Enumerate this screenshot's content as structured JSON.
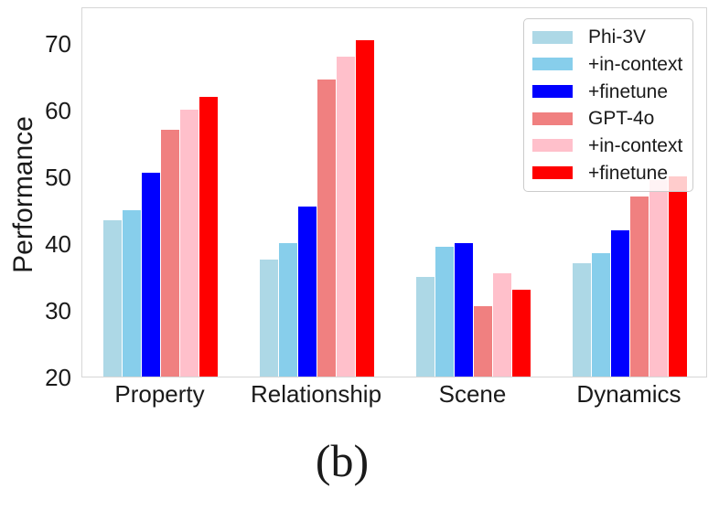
{
  "chart_data": {
    "type": "bar",
    "title": "",
    "xlabel": "",
    "ylabel": "Performance",
    "caption": "(b)",
    "categories": [
      "Property",
      "Relationship",
      "Scene",
      "Dynamics"
    ],
    "series": [
      {
        "name": "Phi-3V",
        "color": "#ADD8E6",
        "values": [
          43.5,
          37.5,
          35.0,
          37.0
        ]
      },
      {
        "name": "+in-context",
        "color": "#87CEEB",
        "values": [
          45.0,
          40.0,
          39.5,
          38.5
        ]
      },
      {
        "name": "+finetune",
        "color": "#0000FF",
        "values": [
          50.5,
          45.5,
          40.0,
          42.0
        ]
      },
      {
        "name": "GPT-4o",
        "color": "#F08080",
        "values": [
          57.0,
          64.5,
          30.5,
          47.0
        ]
      },
      {
        "name": "+in-context",
        "color": "#FFC0CB",
        "values": [
          60.0,
          68.0,
          35.5,
          49.5
        ]
      },
      {
        "name": "+finetune",
        "color": "#FF0000",
        "values": [
          62.0,
          70.5,
          33.0,
          50.0
        ]
      }
    ],
    "ylim": [
      20,
      75.5
    ],
    "yticks": [
      20,
      30,
      40,
      50,
      60,
      70
    ],
    "grid": false,
    "legend_position": "upper-right",
    "spine_color": "#d6d6d6",
    "text_color": "#1a1a1a"
  }
}
